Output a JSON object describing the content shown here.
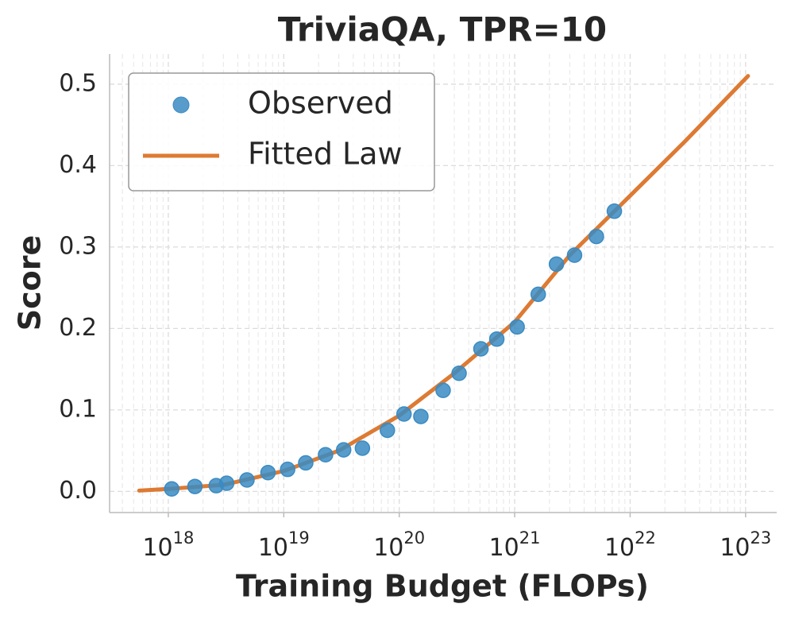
{
  "chart_data": {
    "type": "scatter",
    "title": "TriviaQA, TPR=10",
    "xlabel": "Training Budget (FLOPs)",
    "ylabel": "Score",
    "xscale": "log",
    "grid": true,
    "legend": "upper left",
    "xlim": [
      3.1e+17,
      1.86e+23
    ],
    "xticks": [
      {
        "value": 1e+18,
        "label": "10^18"
      },
      {
        "value": 1e+19,
        "label": "10^19"
      },
      {
        "value": 1e+20,
        "label": "10^20"
      },
      {
        "value": 1e+21,
        "label": "10^21"
      },
      {
        "value": 1e+22,
        "label": "10^22"
      },
      {
        "value": 1e+23,
        "label": "10^23"
      }
    ],
    "ylim": [
      -0.026,
      0.537
    ],
    "yticks": [
      {
        "value": 0,
        "label": "0.0"
      },
      0.1,
      0.2,
      0.3,
      0.4,
      0.5
    ],
    "series": [
      {
        "name": "Observed",
        "type": "scatter",
        "color": "#3a8bc2",
        "x": [
          1.07e+18,
          1.7e+18,
          2.6e+18,
          3.2e+18,
          4.8e+18,
          7.3e+18,
          1.08e+19,
          1.55e+19,
          2.3e+19,
          3.3e+19,
          4.8e+19,
          7.9e+19,
          1.1e+20,
          1.54e+20,
          2.4e+20,
          3.3e+20,
          5.1e+20,
          7e+20,
          1.05e+21,
          1.6e+21,
          2.3e+21,
          3.3e+21,
          5.1e+21,
          7.3e+21
        ],
        "values": [
          0.003,
          0.006,
          0.007,
          0.01,
          0.014,
          0.023,
          0.027,
          0.035,
          0.045,
          0.051,
          0.053,
          0.075,
          0.095,
          0.092,
          0.124,
          0.145,
          0.175,
          0.187,
          0.202,
          0.242,
          0.279,
          0.29,
          0.313,
          0.344
        ]
      },
      {
        "name": "Fitted Law",
        "type": "line",
        "color": "#dd7a33",
        "x": [
          5.6e+17,
          1e+18,
          3e+18,
          1e+19,
          3e+19,
          1e+20,
          3e+20,
          1e+21,
          3e+21,
          1e+22,
          3e+22,
          1.05e+23
        ],
        "values": [
          0.001,
          0.003,
          0.008,
          0.025,
          0.05,
          0.093,
          0.145,
          0.208,
          0.29,
          0.363,
          0.43,
          0.51
        ]
      }
    ]
  }
}
